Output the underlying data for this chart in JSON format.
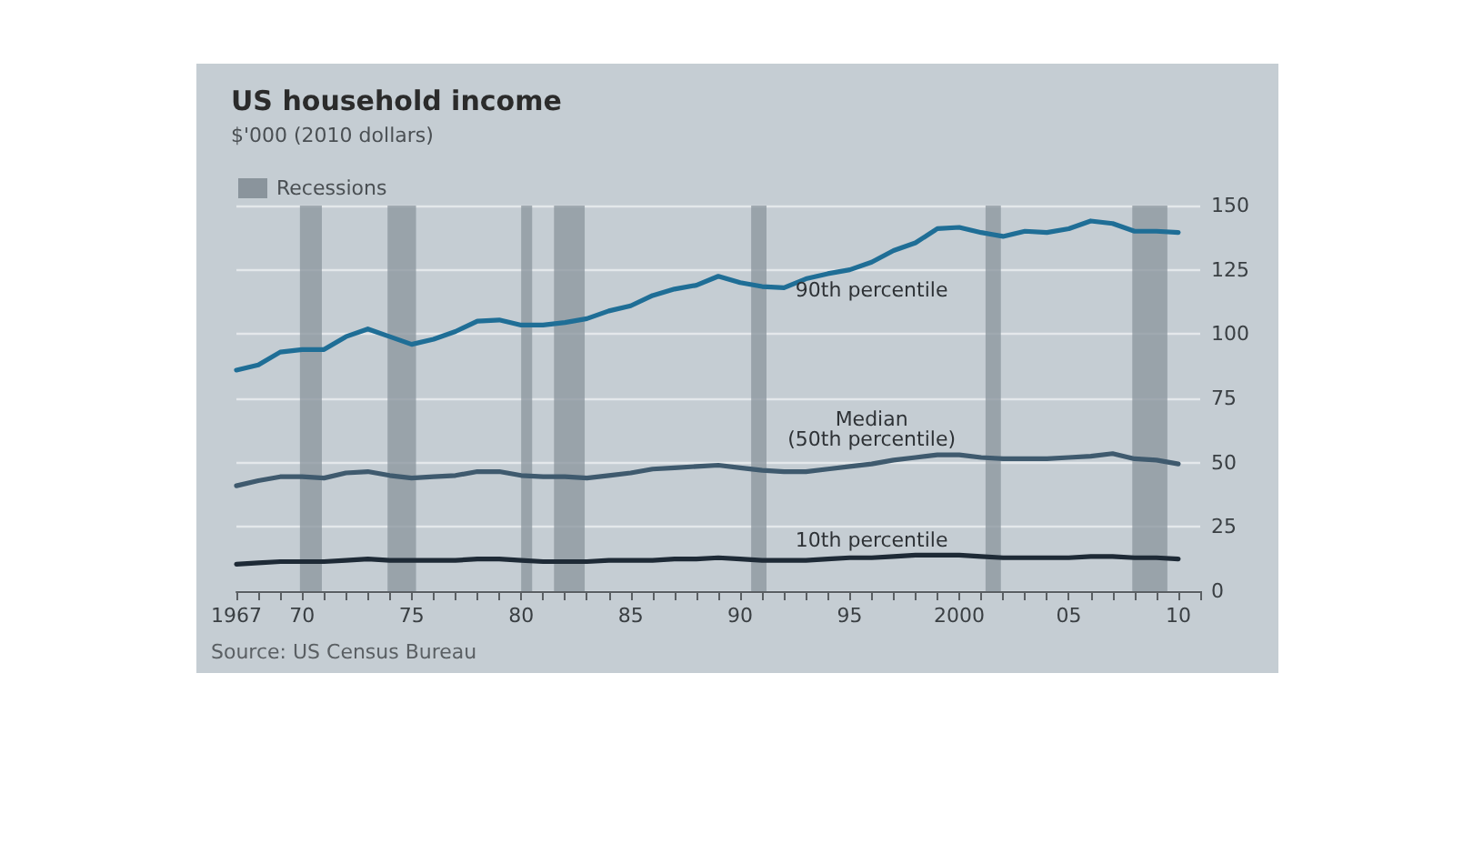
{
  "chart_data": {
    "type": "line",
    "title": "US household income",
    "subtitle": "$'000 (2010 dollars)",
    "x": [
      1967,
      1968,
      1969,
      1970,
      1971,
      1972,
      1973,
      1974,
      1975,
      1976,
      1977,
      1978,
      1979,
      1980,
      1981,
      1982,
      1983,
      1984,
      1985,
      1986,
      1987,
      1988,
      1989,
      1990,
      1991,
      1992,
      1993,
      1994,
      1995,
      1996,
      1997,
      1998,
      1999,
      2000,
      2001,
      2002,
      2003,
      2004,
      2005,
      2006,
      2007,
      2008,
      2009,
      2010
    ],
    "series": [
      {
        "name": "90th percentile",
        "color": "#1f6e96",
        "values": [
          86,
          88,
          93,
          94,
          94,
          99,
          102,
          99,
          96,
          98,
          101,
          105,
          105.5,
          103.5,
          103.5,
          104.5,
          106,
          109,
          111,
          115,
          117.5,
          119,
          122.5,
          120,
          118.5,
          118,
          121.5,
          123.5,
          125,
          128,
          132.5,
          135.5,
          141,
          141.5,
          139.5,
          138,
          140,
          139.5,
          141,
          144,
          143,
          140,
          140,
          139.5
        ]
      },
      {
        "name": "Median\n(50th percentile)",
        "color": "#3f5a6e",
        "values": [
          41,
          43,
          44.5,
          44.5,
          44,
          46,
          46.5,
          45,
          44,
          44.5,
          45,
          46.5,
          46.5,
          45,
          44.5,
          44.5,
          44,
          45,
          46,
          47.5,
          48,
          48.5,
          49,
          48,
          47,
          46.5,
          46.5,
          47.5,
          48.5,
          49.5,
          51,
          52,
          53,
          53,
          52,
          51.5,
          51.5,
          51.5,
          52,
          52.5,
          53.5,
          51.5,
          51,
          49.5
        ]
      },
      {
        "name": "10th percentile",
        "color": "#1e2a36",
        "values": [
          10.5,
          11,
          11.5,
          11.5,
          11.5,
          12,
          12.5,
          12,
          12,
          12,
          12,
          12.5,
          12.5,
          12,
          11.5,
          11.5,
          11.5,
          12,
          12,
          12,
          12.5,
          12.5,
          13,
          12.5,
          12,
          12,
          12,
          12.5,
          13,
          13,
          13.5,
          14,
          14,
          14,
          13.5,
          13,
          13,
          13,
          13,
          13.5,
          13.5,
          13,
          13,
          12.5
        ]
      }
    ],
    "annotations": [
      "Source: US Census Bureau"
    ],
    "bands": [
      {
        "axis": "x",
        "from": 1969.9,
        "to": 1970.9,
        "color": "#8a949c",
        "label": "Recessions"
      },
      {
        "axis": "x",
        "from": 1973.9,
        "to": 1975.2,
        "color": "#8a949c"
      },
      {
        "axis": "x",
        "from": 1980,
        "to": 1980.5,
        "color": "#8a949c"
      },
      {
        "axis": "x",
        "from": 1981.5,
        "to": 1982.9,
        "color": "#8a949c"
      },
      {
        "axis": "x",
        "from": 1990.5,
        "to": 1991.2,
        "color": "#8a949c"
      },
      {
        "axis": "x",
        "from": 2001.2,
        "to": 2001.9,
        "color": "#8a949c"
      },
      {
        "axis": "x",
        "from": 2007.9,
        "to": 2009.5,
        "color": "#8a949c"
      }
    ],
    "xlim": [
      1967,
      2011
    ],
    "xticks": [
      {
        "value": 1967,
        "label": "1967"
      },
      {
        "value": 1968,
        "label": null
      },
      {
        "value": 1969,
        "label": null
      },
      {
        "value": 1970,
        "label": "70"
      },
      {
        "value": 1971,
        "label": null
      },
      {
        "value": 1972,
        "label": null
      },
      {
        "value": 1973,
        "label": null
      },
      {
        "value": 1974,
        "label": null
      },
      {
        "value": 1975,
        "label": "75"
      },
      {
        "value": 1976,
        "label": null
      },
      {
        "value": 1977,
        "label": null
      },
      {
        "value": 1978,
        "label": null
      },
      {
        "value": 1979,
        "label": null
      },
      {
        "value": 1980,
        "label": "80"
      },
      {
        "value": 1981,
        "label": null
      },
      {
        "value": 1982,
        "label": null
      },
      {
        "value": 1983,
        "label": null
      },
      {
        "value": 1984,
        "label": null
      },
      {
        "value": 1985,
        "label": "85"
      },
      {
        "value": 1986,
        "label": null
      },
      {
        "value": 1987,
        "label": null
      },
      {
        "value": 1988,
        "label": null
      },
      {
        "value": 1989,
        "label": null
      },
      {
        "value": 1990,
        "label": "90"
      },
      {
        "value": 1991,
        "label": null
      },
      {
        "value": 1992,
        "label": null
      },
      {
        "value": 1993,
        "label": null
      },
      {
        "value": 1994,
        "label": null
      },
      {
        "value": 1995,
        "label": "95"
      },
      {
        "value": 1996,
        "label": null
      },
      {
        "value": 1997,
        "label": null
      },
      {
        "value": 1998,
        "label": null
      },
      {
        "value": 1999,
        "label": null
      },
      {
        "value": 2000,
        "label": "2000"
      },
      {
        "value": 2001,
        "label": null
      },
      {
        "value": 2002,
        "label": null
      },
      {
        "value": 2003,
        "label": null
      },
      {
        "value": 2004,
        "label": null
      },
      {
        "value": 2005,
        "label": "05"
      },
      {
        "value": 2006,
        "label": null
      },
      {
        "value": 2007,
        "label": null
      },
      {
        "value": 2008,
        "label": null
      },
      {
        "value": 2009,
        "label": null
      },
      {
        "value": 2010,
        "label": "10"
      },
      {
        "value": 2011,
        "label": null
      }
    ],
    "ylim": [
      0,
      150
    ],
    "yticks": [
      0,
      25,
      50,
      75,
      100,
      125,
      150
    ],
    "grid": "y",
    "legend": "top left",
    "marker": "none",
    "line_style": "solid"
  }
}
